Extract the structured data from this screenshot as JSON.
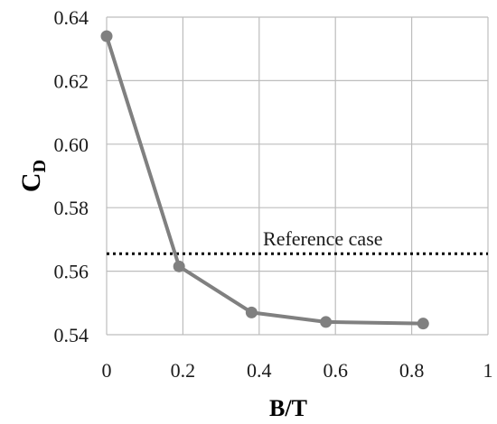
{
  "chart_data": {
    "type": "line",
    "title": "",
    "xlabel": "B/T",
    "ylabel": "C",
    "ylabel_subscript": "D",
    "xlim": [
      0,
      1
    ],
    "ylim": [
      0.54,
      0.64
    ],
    "xticks": [
      0,
      0.2,
      0.4,
      0.6,
      0.8,
      1
    ],
    "xtick_labels": [
      "0",
      "0.2",
      "0.4",
      "0.6",
      "0.8",
      "1"
    ],
    "yticks": [
      0.54,
      0.56,
      0.58,
      0.6,
      0.62,
      0.64
    ],
    "ytick_labels": [
      "0.54",
      "0.56",
      "0.58",
      "0.60",
      "0.62",
      "0.64"
    ],
    "grid": true,
    "legend": "none",
    "series": [
      {
        "x": [
          0,
          0.19,
          0.38,
          0.575,
          0.83
        ],
        "y": [
          0.634,
          0.5615,
          0.547,
          0.544,
          0.5435
        ],
        "color": "#808080",
        "marker": "circle"
      }
    ],
    "reference_line": {
      "y": 0.5655,
      "label": "Reference case",
      "style": "dotted",
      "color": "#000000"
    }
  }
}
